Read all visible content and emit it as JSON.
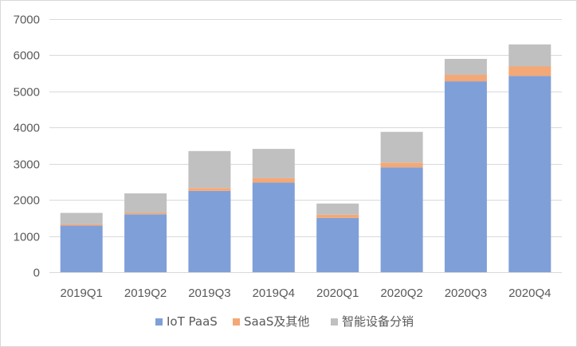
{
  "chart_data": {
    "type": "bar",
    "stacked": true,
    "title": "",
    "xlabel": "",
    "ylabel": "",
    "ylim": [
      0,
      7000
    ],
    "yticks": [
      0,
      1000,
      2000,
      3000,
      4000,
      5000,
      6000,
      7000
    ],
    "grid": true,
    "legend_position": "bottom",
    "categories": [
      "2019Q1",
      "2019Q2",
      "2019Q3",
      "2019Q4",
      "2020Q1",
      "2020Q2",
      "2020Q3",
      "2020Q4"
    ],
    "series": [
      {
        "name": "IoT PaaS",
        "color": "#7f9fd8",
        "values": [
          1290,
          1600,
          2250,
          2480,
          1500,
          2900,
          5280,
          5430
        ]
      },
      {
        "name": "SaaS及其他",
        "color": "#f4a875",
        "values": [
          40,
          40,
          80,
          120,
          90,
          130,
          180,
          260
        ]
      },
      {
        "name": "智能设备分销",
        "color": "#c0c0c0",
        "values": [
          310,
          540,
          1020,
          810,
          310,
          850,
          440,
          610
        ]
      }
    ]
  }
}
